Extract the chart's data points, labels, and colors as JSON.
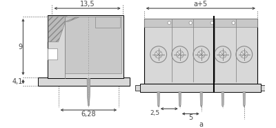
{
  "bg_color": "#ffffff",
  "line_color": "#000000",
  "gray_fill": "#c8c8c8",
  "light_gray": "#d8d8d8",
  "dark_gray": "#888888",
  "mid_gray": "#b0b0b0",
  "dim_line_color": "#444444",
  "dim_text_13_5": "13,5",
  "dim_text_9": "9",
  "dim_text_4_1": "4,1",
  "dim_text_6_28": "6,28",
  "dim_text_a5": "a+5",
  "dim_text_2_5": "2,5",
  "dim_text_5": "5",
  "dim_text_a": "a",
  "font_size": 7.0
}
